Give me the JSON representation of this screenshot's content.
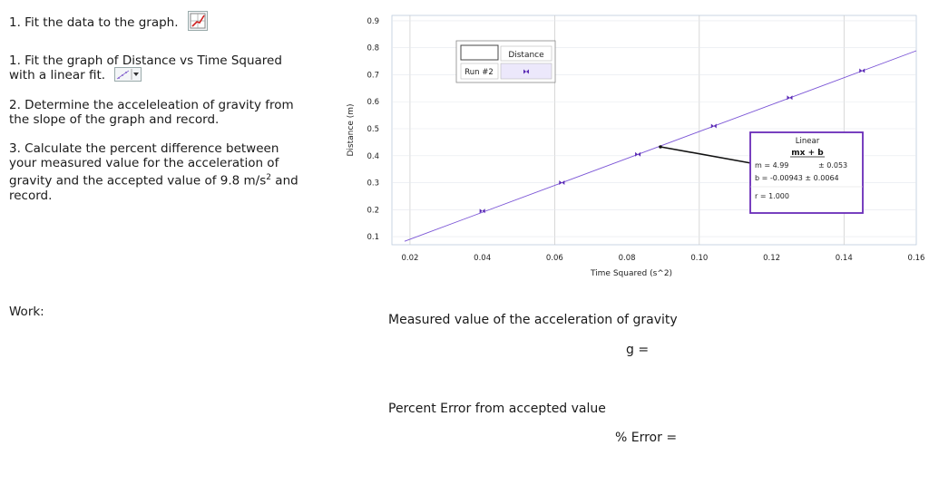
{
  "instructions": {
    "step0": "1.  Fit the data to the graph.",
    "step1_line1": "1. Fit the graph of Distance vs Time Squared",
    "step1_line2": "with a linear fit.",
    "step2_line1": "2.  Determine the acceleleation of gravity from",
    "step2_line2": "the slope of the graph and record.",
    "step3_line1": "3.  Calculate the percent difference between",
    "step3_line2": "your measured value for the acceleration of",
    "step3_line3a": "gravity and the accepted value of 9.8 m/s",
    "step3_sup": "2",
    "step3_line3b": " and",
    "step3_line4": "record.",
    "graph_button_icon": "graph-icon",
    "fit_button_icon": "linear-fit-icon"
  },
  "work": {
    "label": "Work:"
  },
  "questions": {
    "gravity_label": "Measured value of the acceleration of gravity",
    "gravity_var": "g =",
    "error_label": "Percent Error from accepted value",
    "error_var": "% Error ="
  },
  "legend": {
    "header": "Distance",
    "run": "Run #2"
  },
  "fit_box": {
    "title": "Linear",
    "formula": "mx + b",
    "m_label": "m = 4.99",
    "m_err": "± 0.053",
    "b_label": "b  = -0.00943 ± 0.0064",
    "r_label": "r = 1.000"
  },
  "chart_data": {
    "type": "scatter",
    "xlabel": "Time Squared (s^2)",
    "ylabel": "Distance (m)",
    "xlim": [
      0.015,
      0.16
    ],
    "ylim": [
      0.07,
      0.92
    ],
    "xticks": [
      "0.02",
      "0.04",
      "0.06",
      "0.08",
      "0.10",
      "0.12",
      "0.14",
      "0.16"
    ],
    "yticks": [
      "0.9",
      "0.8",
      "0.7",
      "0.6",
      "0.5",
      "0.4",
      "0.3",
      "0.2",
      "0.1"
    ],
    "series": [
      {
        "name": "Run #2",
        "x": [
          0.04,
          0.062,
          0.083,
          0.104,
          0.125,
          0.145
        ],
        "y": [
          0.195,
          0.3,
          0.405,
          0.51,
          0.615,
          0.715
        ]
      }
    ],
    "fit": {
      "slope": 4.99,
      "intercept": -0.00943
    },
    "colors": {
      "points": "#5b2bb5",
      "fit_line": "#7b55d6",
      "fit_box_border": "#6a2bb8",
      "grid": "#c8c8c8"
    }
  }
}
